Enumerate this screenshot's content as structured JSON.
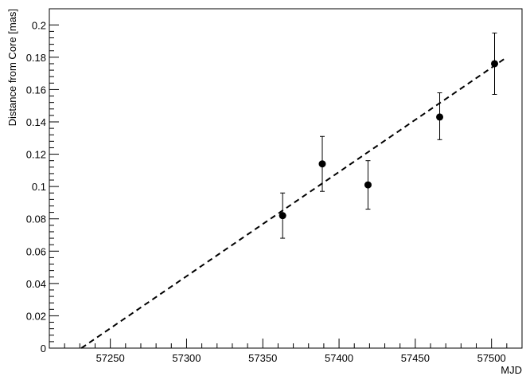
{
  "chart_data": {
    "type": "scatter",
    "title": "",
    "xlabel": "MJD",
    "ylabel": "Distance from Core [mas]",
    "xlim": [
      57210,
      57520
    ],
    "ylim": [
      0,
      0.21
    ],
    "x_ticks": [
      57250,
      57300,
      57350,
      57400,
      57450,
      57500
    ],
    "y_ticks": [
      0,
      0.02,
      0.04,
      0.06,
      0.08,
      0.1,
      0.12,
      0.14,
      0.16,
      0.18,
      0.2
    ],
    "x_tick_labels": [
      "57250",
      "57300",
      "57350",
      "57400",
      "57450",
      "57500"
    ],
    "y_tick_labels": [
      "0",
      "0.02",
      "0.04",
      "0.06",
      "0.08",
      "0.1",
      "0.12",
      "0.14",
      "0.16",
      "0.18",
      "0.2"
    ],
    "grid": false,
    "legend": "none",
    "points": [
      {
        "x": 57363,
        "y": 0.082,
        "yerr_low": 0.014,
        "yerr_high": 0.014
      },
      {
        "x": 57389,
        "y": 0.114,
        "yerr_low": 0.017,
        "yerr_high": 0.017
      },
      {
        "x": 57419,
        "y": 0.101,
        "yerr_low": 0.015,
        "yerr_high": 0.015
      },
      {
        "x": 57466,
        "y": 0.143,
        "yerr_low": 0.014,
        "yerr_high": 0.015
      },
      {
        "x": 57502,
        "y": 0.176,
        "yerr_low": 0.019,
        "yerr_high": 0.019
      }
    ],
    "fit_line": {
      "style": "dashed",
      "x": [
        57231,
        57510
      ],
      "y": [
        0,
        0.18
      ]
    },
    "colors": {
      "marker": "#000000",
      "line": "#000000",
      "axis": "#000000"
    }
  }
}
